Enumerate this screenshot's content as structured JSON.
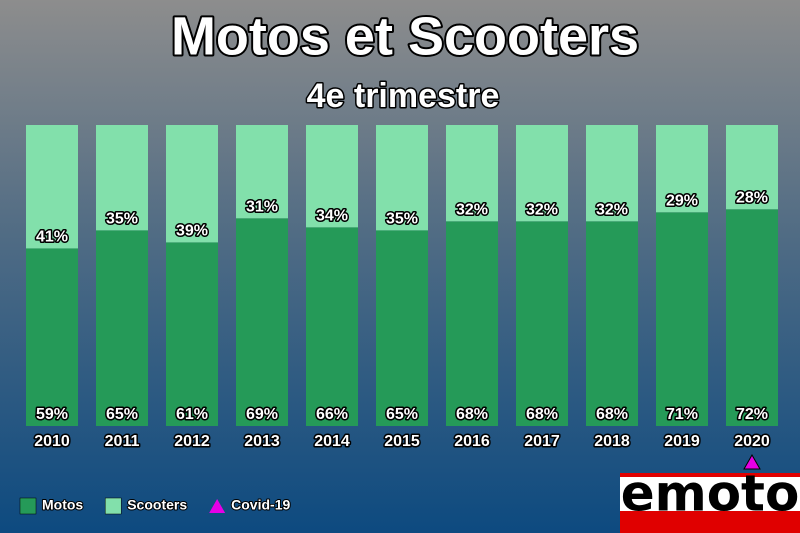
{
  "chart_data": {
    "type": "stacked-bar",
    "title": "Motos et Scooters",
    "subtitle": "4e trimestre",
    "categories": [
      "2010",
      "2011",
      "2012",
      "2013",
      "2014",
      "2015",
      "2016",
      "2017",
      "2018",
      "2019",
      "2020"
    ],
    "series": [
      {
        "name": "Motos",
        "color": "#259a58",
        "values": [
          59,
          65,
          61,
          69,
          66,
          65,
          68,
          68,
          68,
          71,
          72
        ],
        "value_labels": [
          "59%",
          "65%",
          "61%",
          "69%",
          "66%",
          "65%",
          "68%",
          "68%",
          "68%",
          "71%",
          "72%"
        ]
      },
      {
        "name": "Scooters",
        "color": "#82e0ab",
        "values": [
          41,
          35,
          39,
          31,
          34,
          35,
          32,
          32,
          32,
          29,
          28
        ],
        "value_labels": [
          "41%",
          "35%",
          "39%",
          "31%",
          "34%",
          "35%",
          "32%",
          "32%",
          "32%",
          "29%",
          "28%"
        ]
      }
    ],
    "marker": {
      "name": "Covid-19",
      "color": "#e600e6",
      "category": "2020"
    },
    "ylim": [
      0,
      100
    ],
    "logo": "emoto"
  }
}
